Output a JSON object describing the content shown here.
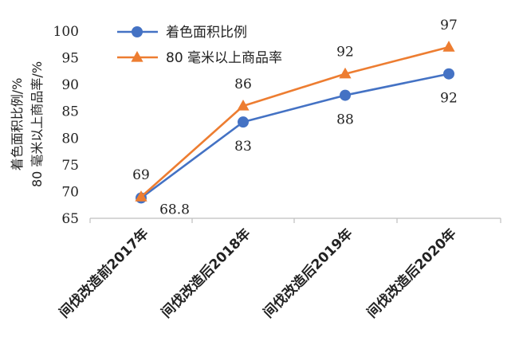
{
  "chart_data": {
    "type": "line",
    "categories": [
      "间伐改造前2017年",
      "间伐改造后2018年",
      "间伐改造后2019年",
      "间伐改造后2020年"
    ],
    "series": [
      {
        "name": "着色面积比例",
        "values": [
          68.8,
          83,
          88,
          92
        ],
        "labels": [
          "68.8",
          "83",
          "88",
          "92"
        ],
        "color": "#4472c4",
        "marker": "circle",
        "label_position": "below"
      },
      {
        "name": "80 毫米以上商品率",
        "values": [
          69,
          86,
          92,
          97
        ],
        "labels": [
          "69",
          "86",
          "92",
          "97"
        ],
        "color": "#ed7d31",
        "marker": "triangle",
        "label_position": "above"
      }
    ],
    "ylabel_lines": [
      "着色面积比例/%",
      "80 毫米以上商品率/%"
    ],
    "ylim": [
      65,
      100
    ],
    "yticks": [
      65,
      70,
      75,
      80,
      85,
      90,
      95,
      100
    ],
    "grid": false,
    "legend_position": "top-left"
  }
}
